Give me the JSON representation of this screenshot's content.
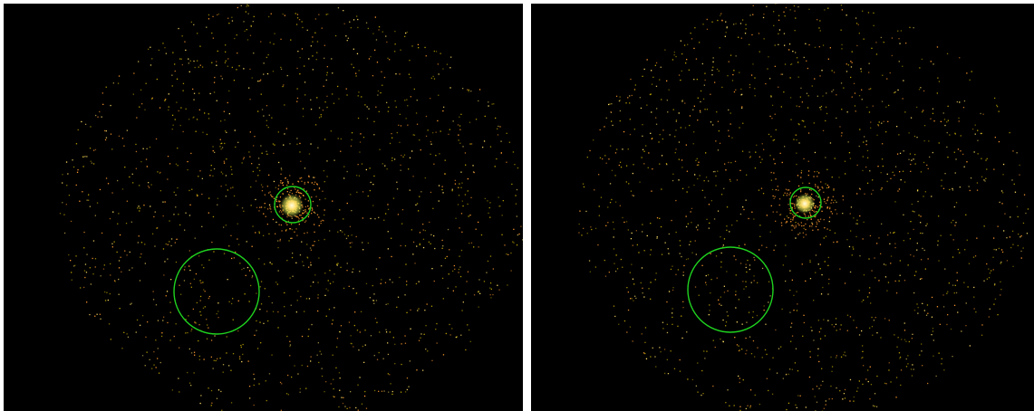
{
  "colors": {
    "background": "#000000",
    "region_circle": "#1fd21f",
    "photon_dim": "#b8a100",
    "photon_mid": "#ff9a2e",
    "photon_bright": "#ffe066",
    "source_core": "#fffbe0",
    "separator": "#ffffff"
  },
  "panels": [
    {
      "name": "left-exposure",
      "regions": [
        "source-region",
        "background-region"
      ]
    },
    {
      "name": "right-exposure",
      "regions": [
        "source-region",
        "background-region"
      ]
    }
  ]
}
